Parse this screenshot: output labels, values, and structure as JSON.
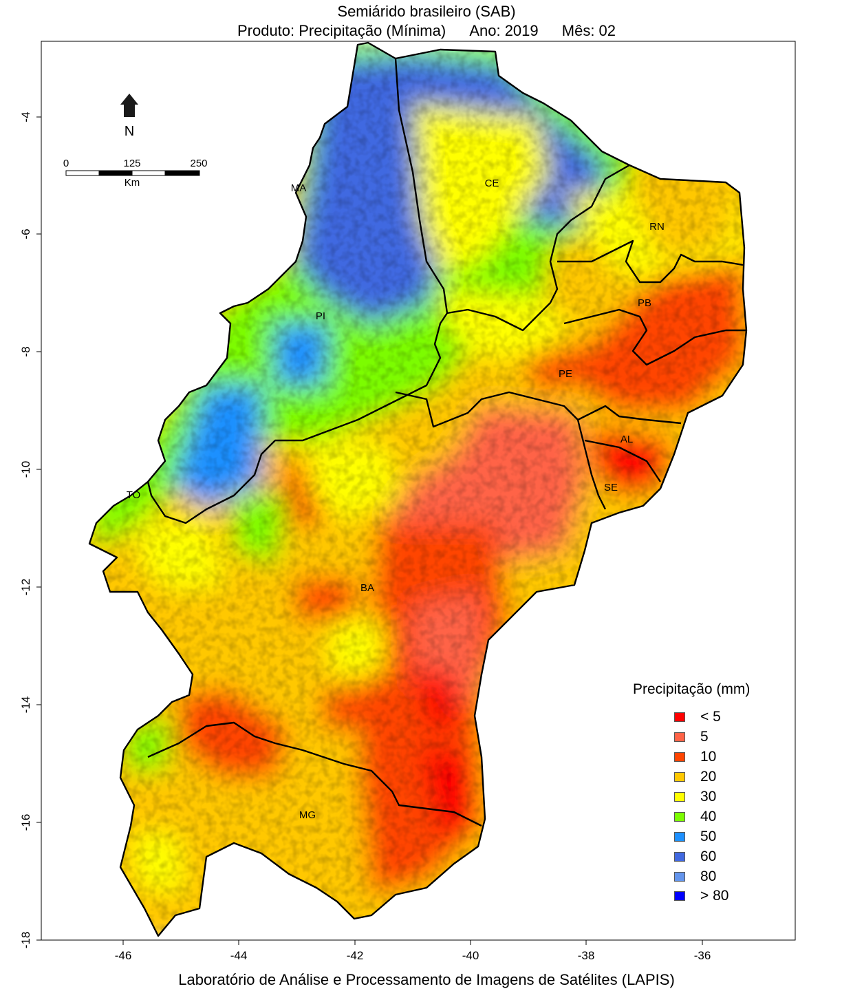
{
  "header": {
    "title": "Semiárido brasileiro (SAB)",
    "product": "Produto: Precipitação (Mínima)",
    "year": "Ano:  2019",
    "month": "Mês:  02"
  },
  "footer": "Laboratório de Análise e Processamento de Imagens de Satélites (LAPIS)",
  "axes": {
    "x_ticks": [
      "-46",
      "-44",
      "-42",
      "-40",
      "-38",
      "-36"
    ],
    "y_ticks": [
      "-4",
      "-6",
      "-8",
      "-10",
      "-12",
      "-14",
      "-16",
      "-18"
    ]
  },
  "north_arrow": {
    "label": "N",
    "icon": "north-arrow-icon"
  },
  "scale_bar": {
    "labels": [
      "0",
      "125",
      "250"
    ],
    "unit": "Km"
  },
  "states": [
    "MA",
    "CE",
    "RN",
    "PB",
    "PI",
    "PE",
    "AL",
    "SE",
    "TO",
    "BA",
    "MG"
  ],
  "legend": {
    "title": "Precipitação (mm)",
    "items": [
      {
        "label": "< 5",
        "color": "#ff0000"
      },
      {
        "label": "5",
        "color": "#ff6347"
      },
      {
        "label": "10",
        "color": "#ff4500"
      },
      {
        "label": "20",
        "color": "#ffc800"
      },
      {
        "label": "30",
        "color": "#ffff00"
      },
      {
        "label": "40",
        "color": "#7cfc00"
      },
      {
        "label": "50",
        "color": "#1e90ff"
      },
      {
        "label": "60",
        "color": "#4169e1"
      },
      {
        "label": "80",
        "color": "#6495ed"
      },
      {
        "label": "> 80",
        "color": "#0000ff"
      }
    ]
  }
}
